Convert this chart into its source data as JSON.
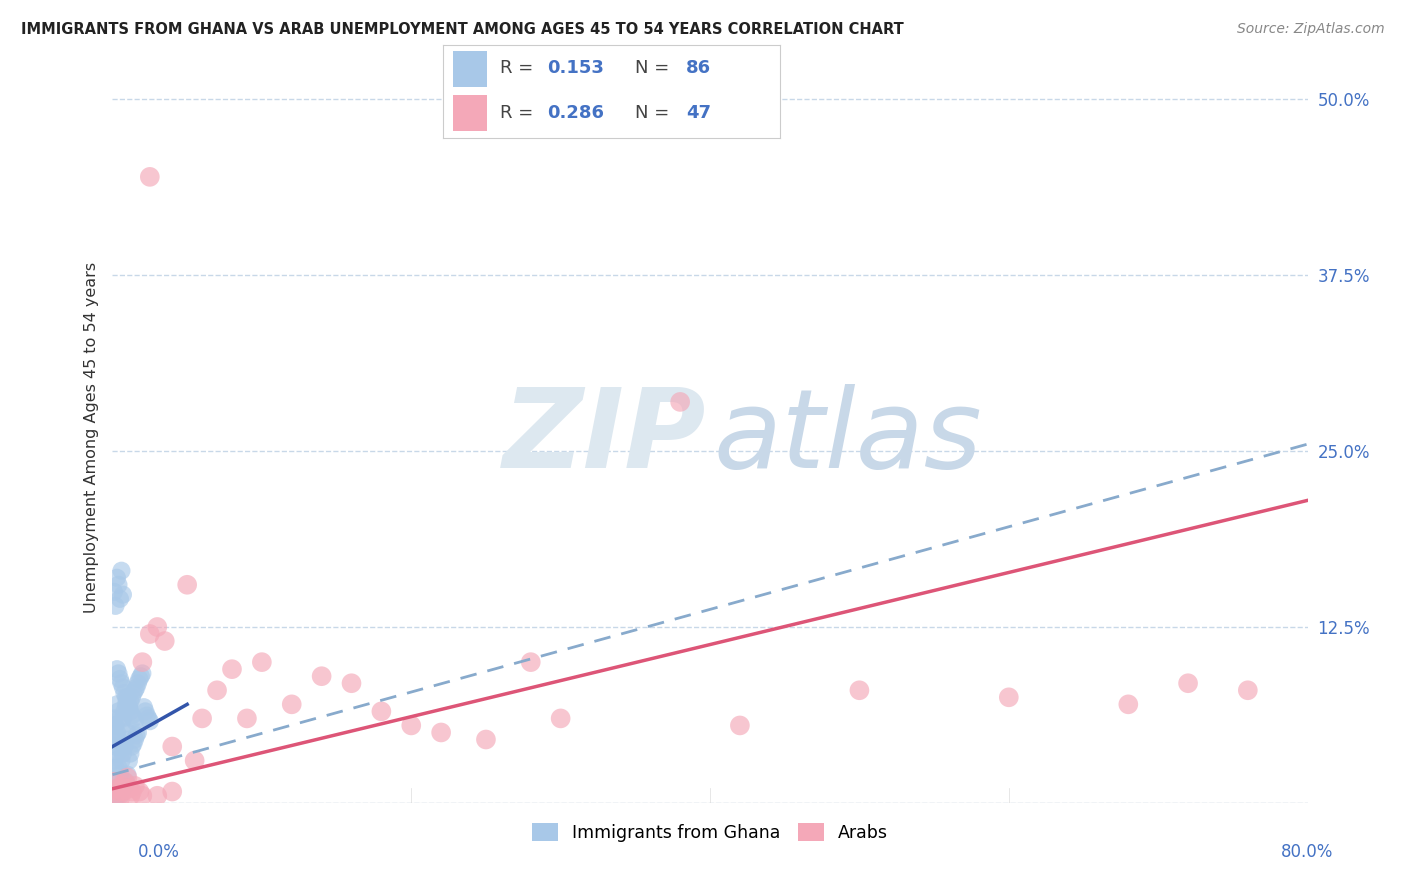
{
  "title": "IMMIGRANTS FROM GHANA VS ARAB UNEMPLOYMENT AMONG AGES 45 TO 54 YEARS CORRELATION CHART",
  "source": "Source: ZipAtlas.com",
  "ylabel": "Unemployment Among Ages 45 to 54 years",
  "xlim": [
    0.0,
    0.8
  ],
  "ylim": [
    0.0,
    0.52
  ],
  "yticks": [
    0.0,
    0.125,
    0.25,
    0.375,
    0.5
  ],
  "yticklabels": [
    "",
    "12.5%",
    "25.0%",
    "37.5%",
    "50.0%"
  ],
  "legend1_label": "Immigrants from Ghana",
  "legend2_label": "Arabs",
  "R1": 0.153,
  "N1": 86,
  "R2": 0.286,
  "N2": 47,
  "color_blue": "#a8c8e8",
  "color_pink": "#f4a8b8",
  "line_blue": "#3355aa",
  "line_pink": "#dd5577",
  "dash_color": "#88aacc",
  "ghana_x": [
    0.001,
    0.001,
    0.001,
    0.001,
    0.001,
    0.002,
    0.002,
    0.002,
    0.002,
    0.002,
    0.003,
    0.003,
    0.003,
    0.003,
    0.003,
    0.004,
    0.004,
    0.004,
    0.004,
    0.005,
    0.005,
    0.005,
    0.005,
    0.006,
    0.006,
    0.006,
    0.007,
    0.007,
    0.007,
    0.008,
    0.008,
    0.008,
    0.009,
    0.009,
    0.009,
    0.01,
    0.01,
    0.01,
    0.011,
    0.011,
    0.012,
    0.012,
    0.013,
    0.013,
    0.014,
    0.014,
    0.015,
    0.015,
    0.016,
    0.016,
    0.017,
    0.017,
    0.018,
    0.019,
    0.02,
    0.021,
    0.022,
    0.023,
    0.024,
    0.025,
    0.003,
    0.004,
    0.005,
    0.006,
    0.007,
    0.008,
    0.009,
    0.01,
    0.011,
    0.012,
    0.013,
    0.014,
    0.015,
    0.001,
    0.002,
    0.003,
    0.004,
    0.005,
    0.006,
    0.007,
    0.001,
    0.002,
    0.001,
    0.002,
    0.001,
    0.001
  ],
  "ghana_y": [
    0.06,
    0.045,
    0.03,
    0.01,
    0.005,
    0.055,
    0.04,
    0.025,
    0.01,
    0.005,
    0.07,
    0.05,
    0.035,
    0.015,
    0.005,
    0.065,
    0.045,
    0.025,
    0.008,
    0.06,
    0.04,
    0.02,
    0.005,
    0.055,
    0.03,
    0.008,
    0.06,
    0.035,
    0.01,
    0.065,
    0.04,
    0.012,
    0.07,
    0.045,
    0.015,
    0.075,
    0.05,
    0.02,
    0.068,
    0.03,
    0.072,
    0.035,
    0.075,
    0.04,
    0.078,
    0.042,
    0.08,
    0.045,
    0.082,
    0.048,
    0.085,
    0.05,
    0.088,
    0.09,
    0.092,
    0.068,
    0.065,
    0.062,
    0.06,
    0.058,
    0.095,
    0.092,
    0.088,
    0.085,
    0.082,
    0.078,
    0.075,
    0.072,
    0.068,
    0.065,
    0.062,
    0.06,
    0.058,
    0.15,
    0.14,
    0.16,
    0.155,
    0.145,
    0.165,
    0.148,
    0.055,
    0.048,
    0.002,
    0.002,
    0.001,
    0.003
  ],
  "arab_x": [
    0.025,
    0.001,
    0.002,
    0.003,
    0.004,
    0.005,
    0.006,
    0.007,
    0.008,
    0.009,
    0.01,
    0.011,
    0.012,
    0.013,
    0.015,
    0.018,
    0.02,
    0.025,
    0.03,
    0.035,
    0.04,
    0.05,
    0.055,
    0.06,
    0.07,
    0.08,
    0.09,
    0.1,
    0.12,
    0.14,
    0.16,
    0.18,
    0.2,
    0.22,
    0.25,
    0.28,
    0.3,
    0.38,
    0.42,
    0.5,
    0.6,
    0.68,
    0.72,
    0.76,
    0.02,
    0.03,
    0.04
  ],
  "arab_y": [
    0.445,
    0.015,
    0.01,
    0.005,
    0.008,
    0.003,
    0.012,
    0.008,
    0.015,
    0.01,
    0.018,
    0.01,
    0.005,
    0.008,
    0.012,
    0.008,
    0.1,
    0.12,
    0.125,
    0.115,
    0.04,
    0.155,
    0.03,
    0.06,
    0.08,
    0.095,
    0.06,
    0.1,
    0.07,
    0.09,
    0.085,
    0.065,
    0.055,
    0.05,
    0.045,
    0.1,
    0.06,
    0.285,
    0.055,
    0.08,
    0.075,
    0.07,
    0.085,
    0.08,
    0.005,
    0.005,
    0.008
  ],
  "blue_line_x0": 0.0,
  "blue_line_y0": 0.04,
  "blue_line_x1": 0.05,
  "blue_line_y1": 0.07,
  "pink_line_x0": 0.0,
  "pink_line_y0": 0.01,
  "pink_line_x1": 0.8,
  "pink_line_y1": 0.215,
  "dash_line_x0": 0.0,
  "dash_line_y0": 0.02,
  "dash_line_x1": 0.8,
  "dash_line_y1": 0.255
}
